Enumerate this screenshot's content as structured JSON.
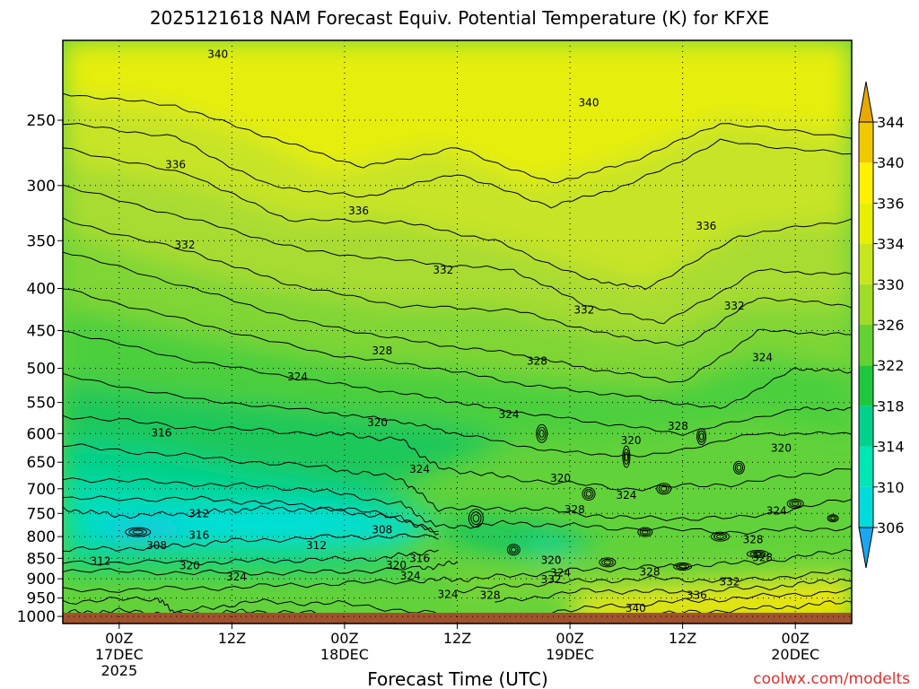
{
  "chart_data": {
    "type": "heatmap",
    "title": "2025121618 NAM Forecast Equiv. Potential Temperature (K) for KFXE",
    "xlabel": "Forecast Time (UTC)",
    "ylabel": "",
    "credit": "coolwx.com/modelts",
    "x_ticks": [
      {
        "hour": 6,
        "l1": "00Z",
        "l2": "17DEC",
        "l3": "2025"
      },
      {
        "hour": 18,
        "l1": "12Z",
        "l2": "",
        "l3": ""
      },
      {
        "hour": 30,
        "l1": "00Z",
        "l2": "18DEC",
        "l3": ""
      },
      {
        "hour": 42,
        "l1": "12Z",
        "l2": "",
        "l3": ""
      },
      {
        "hour": 54,
        "l1": "00Z",
        "l2": "19DEC",
        "l3": ""
      },
      {
        "hour": 66,
        "l1": "12Z",
        "l2": "",
        "l3": ""
      },
      {
        "hour": 78,
        "l1": "00Z",
        "l2": "20DEC",
        "l3": ""
      }
    ],
    "y_ticks": [
      250,
      300,
      350,
      400,
      450,
      500,
      550,
      600,
      650,
      700,
      750,
      800,
      850,
      900,
      950,
      1000
    ],
    "ylim": [
      200,
      1020
    ],
    "y_scale": "log",
    "x_range_hours": [
      0,
      84
    ],
    "grid": "dotted",
    "colorbar": {
      "ticks": [
        306,
        310,
        314,
        318,
        322,
        326,
        330,
        334,
        336,
        340,
        344
      ],
      "colors": [
        "#1aa7ee",
        "#00dcdc",
        "#00e6b4",
        "#00d28c",
        "#1ec83c",
        "#64d232",
        "#a0dc28",
        "#c8e61e",
        "#e6f000",
        "#fff000",
        "#f0c800",
        "#e8a800"
      ]
    },
    "contour_labels": [
      {
        "text": "340",
        "hour": 16.5,
        "p": 208
      },
      {
        "text": "340",
        "hour": 56,
        "p": 238
      },
      {
        "text": "336",
        "hour": 12,
        "p": 283
      },
      {
        "text": "336",
        "hour": 31.5,
        "p": 322
      },
      {
        "text": "336",
        "hour": 68.5,
        "p": 336
      },
      {
        "text": "332",
        "hour": 13,
        "p": 354
      },
      {
        "text": "332",
        "hour": 40.5,
        "p": 380
      },
      {
        "text": "332",
        "hour": 55.5,
        "p": 425
      },
      {
        "text": "332",
        "hour": 71.5,
        "p": 420
      },
      {
        "text": "328",
        "hour": 34,
        "p": 476
      },
      {
        "text": "328",
        "hour": 50.5,
        "p": 490
      },
      {
        "text": "328",
        "hour": 65.5,
        "p": 588
      },
      {
        "text": "324",
        "hour": 25,
        "p": 512
      },
      {
        "text": "324",
        "hour": 47.5,
        "p": 569
      },
      {
        "text": "324",
        "hour": 74.5,
        "p": 485
      },
      {
        "text": "324",
        "hour": 38,
        "p": 663
      },
      {
        "text": "324",
        "hour": 60,
        "p": 713
      },
      {
        "text": "324",
        "hour": 76,
        "p": 745
      },
      {
        "text": "324",
        "hour": 18.5,
        "p": 895
      },
      {
        "text": "324",
        "hour": 37,
        "p": 893
      },
      {
        "text": "324",
        "hour": 41,
        "p": 940
      },
      {
        "text": "324",
        "hour": 53,
        "p": 885
      },
      {
        "text": "320",
        "hour": 33.5,
        "p": 582
      },
      {
        "text": "320",
        "hour": 53,
        "p": 680
      },
      {
        "text": "320",
        "hour": 60.5,
        "p": 612
      },
      {
        "text": "320",
        "hour": 76.5,
        "p": 625
      },
      {
        "text": "320",
        "hour": 13.5,
        "p": 868
      },
      {
        "text": "320",
        "hour": 35.5,
        "p": 867
      },
      {
        "text": "320",
        "hour": 52,
        "p": 855
      },
      {
        "text": "316",
        "hour": 10.5,
        "p": 599
      },
      {
        "text": "316",
        "hour": 14.5,
        "p": 797
      },
      {
        "text": "316",
        "hour": 38,
        "p": 851
      },
      {
        "text": "312",
        "hour": 14.5,
        "p": 750
      },
      {
        "text": "312",
        "hour": 27,
        "p": 820
      },
      {
        "text": "312",
        "hour": 4,
        "p": 857
      },
      {
        "text": "308",
        "hour": 34,
        "p": 785
      },
      {
        "text": "308",
        "hour": 10,
        "p": 820
      },
      {
        "text": "328",
        "hour": 54.5,
        "p": 742
      },
      {
        "text": "328",
        "hour": 45.5,
        "p": 942
      },
      {
        "text": "328",
        "hour": 62.5,
        "p": 883
      },
      {
        "text": "328",
        "hour": 73.5,
        "p": 807
      },
      {
        "text": "328",
        "hour": 74.5,
        "p": 848
      },
      {
        "text": "332",
        "hour": 52,
        "p": 902
      },
      {
        "text": "332",
        "hour": 71,
        "p": 908
      },
      {
        "text": "336",
        "hour": 67.5,
        "p": 943
      },
      {
        "text": "340",
        "hour": 61,
        "p": 978
      }
    ]
  }
}
